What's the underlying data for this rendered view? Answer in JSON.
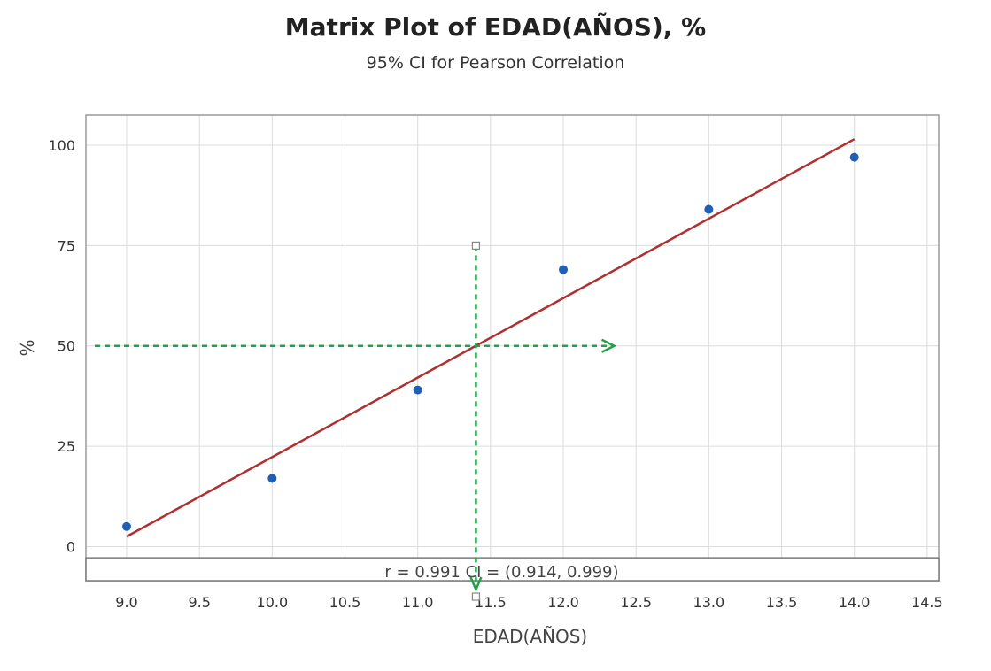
{
  "chart_data": {
    "type": "scatter",
    "title": "Matrix Plot of EDAD(AÑOS), %",
    "subtitle": "95% CI for Pearson Correlation",
    "xlabel": "EDAD(AÑOS)",
    "ylabel": "%",
    "xlim": [
      8.72,
      14.58
    ],
    "ylim": [
      -8.5,
      107.5
    ],
    "x_ticks": [
      "9.0",
      "9.5",
      "10.0",
      "10.5",
      "11.0",
      "11.5",
      "12.0",
      "12.5",
      "13.0",
      "13.5",
      "14.0",
      "14.5"
    ],
    "y_ticks": [
      "0",
      "25",
      "50",
      "75",
      "100"
    ],
    "grid": true,
    "points": [
      {
        "x": 9.0,
        "y": 5
      },
      {
        "x": 10.0,
        "y": 17
      },
      {
        "x": 11.0,
        "y": 39
      },
      {
        "x": 12.0,
        "y": 69
      },
      {
        "x": 13.0,
        "y": 84
      },
      {
        "x": 14.0,
        "y": 97
      }
    ],
    "fit_line": {
      "x": [
        9.0,
        14.0
      ],
      "y": [
        2.5,
        101.5
      ]
    },
    "reference": {
      "x": 11.4,
      "y": 50,
      "y_from": 75,
      "arrow_to_x": 12.35
    },
    "annotation": "r = 0.991  CI = (0.914, 0.999)",
    "colors": {
      "points": "#1f5fb5",
      "fit_line": "#b03030",
      "reference": "#23a04a",
      "grid": "#dcdcdc",
      "frame": "#9a9a9a"
    }
  }
}
